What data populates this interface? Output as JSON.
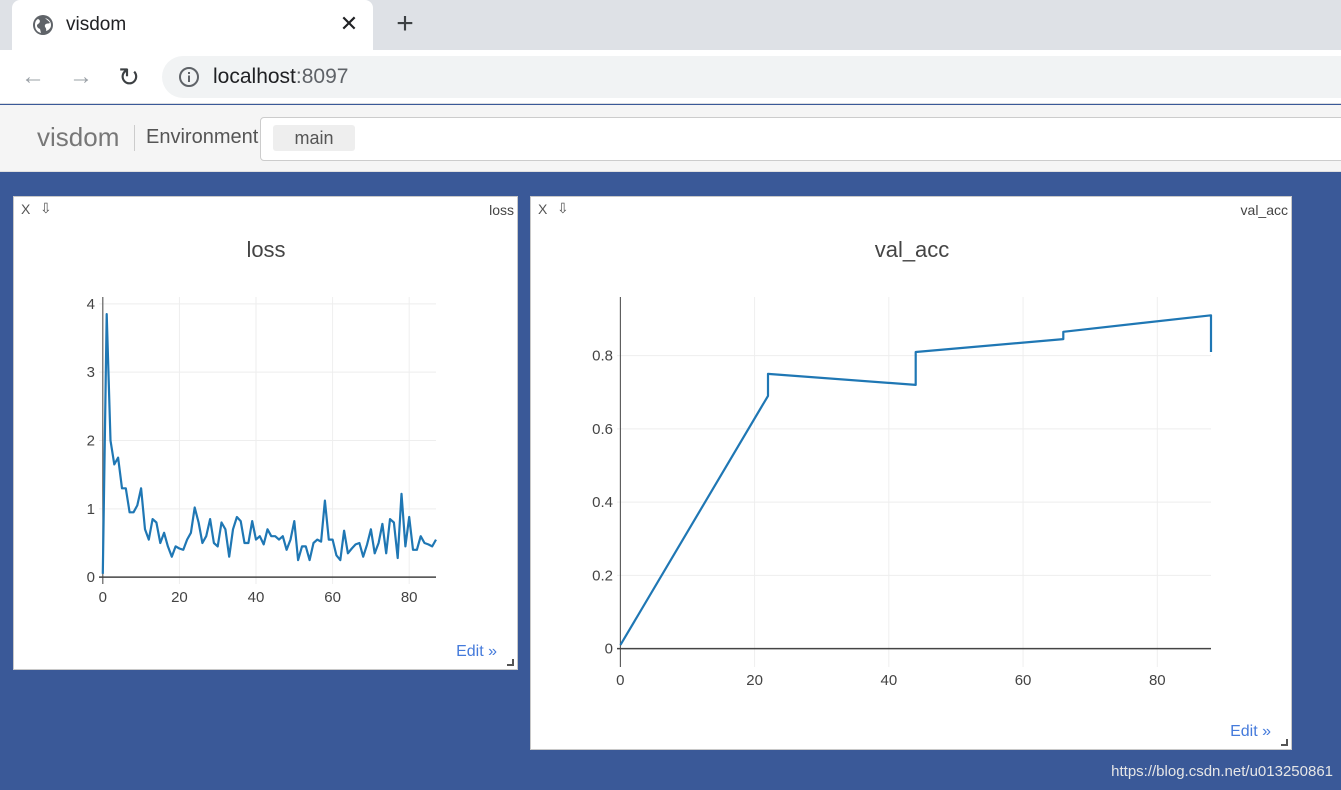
{
  "browser": {
    "tab_title": "visdom",
    "url_host": "localhost",
    "url_port": ":8097"
  },
  "visdom": {
    "brand": "visdom",
    "environment_label": "Environment",
    "env_chip": "main"
  },
  "panes": [
    {
      "window_label": "loss",
      "close_label": "X",
      "download_label": "⇩",
      "edit_label": "Edit »"
    },
    {
      "window_label": "val_acc",
      "close_label": "X",
      "download_label": "⇩",
      "edit_label": "Edit »"
    }
  ],
  "chart_data": [
    {
      "type": "line",
      "title": "loss",
      "xlim": [
        -1,
        87
      ],
      "ylim": [
        -0.1,
        4.1
      ],
      "xticks": [
        0,
        20,
        40,
        60,
        80
      ],
      "yticks": [
        0,
        1,
        2,
        3,
        4
      ],
      "line_color": "#1f77b4",
      "x": [
        0,
        1,
        2,
        3,
        4,
        5,
        6,
        7,
        8,
        9,
        10,
        11,
        12,
        13,
        14,
        15,
        16,
        17,
        18,
        19,
        20,
        21,
        22,
        23,
        24,
        25,
        26,
        27,
        28,
        29,
        30,
        31,
        32,
        33,
        34,
        35,
        36,
        37,
        38,
        39,
        40,
        41,
        42,
        43,
        44,
        45,
        46,
        47,
        48,
        49,
        50,
        51,
        52,
        53,
        54,
        55,
        56,
        57,
        58,
        59,
        60,
        61,
        62,
        63,
        64,
        65,
        66,
        67,
        68,
        69,
        70,
        71,
        72,
        73,
        74,
        75,
        76,
        77,
        78,
        79,
        80,
        81,
        82,
        83,
        84,
        85,
        86,
        87
      ],
      "y": [
        0.05,
        3.85,
        2.0,
        1.65,
        1.75,
        1.3,
        1.3,
        0.95,
        0.95,
        1.05,
        1.3,
        0.7,
        0.55,
        0.85,
        0.8,
        0.5,
        0.65,
        0.45,
        0.3,
        0.45,
        0.42,
        0.4,
        0.55,
        0.65,
        1.02,
        0.8,
        0.5,
        0.6,
        0.85,
        0.5,
        0.45,
        0.8,
        0.7,
        0.3,
        0.7,
        0.88,
        0.82,
        0.5,
        0.5,
        0.82,
        0.55,
        0.6,
        0.48,
        0.7,
        0.6,
        0.6,
        0.55,
        0.6,
        0.4,
        0.55,
        0.82,
        0.25,
        0.45,
        0.45,
        0.25,
        0.5,
        0.55,
        0.52,
        1.12,
        0.55,
        0.55,
        0.32,
        0.25,
        0.68,
        0.35,
        0.42,
        0.48,
        0.5,
        0.3,
        0.48,
        0.7,
        0.35,
        0.5,
        0.78,
        0.35,
        0.85,
        0.8,
        0.28,
        1.22,
        0.45,
        0.88,
        0.4,
        0.4,
        0.6,
        0.5,
        0.48,
        0.45,
        0.55
      ]
    },
    {
      "type": "line",
      "title": "val_acc",
      "xlim": [
        -0.5,
        88
      ],
      "ylim": [
        -0.05,
        0.96
      ],
      "xticks": [
        0,
        20,
        40,
        60,
        80
      ],
      "yticks": [
        0,
        0.2,
        0.4,
        0.6,
        0.8
      ],
      "line_color": "#1f77b4",
      "x": [
        0,
        22,
        22,
        44,
        44,
        66,
        66,
        88,
        88
      ],
      "y": [
        0.01,
        0.69,
        0.75,
        0.72,
        0.81,
        0.845,
        0.865,
        0.91,
        0.81
      ]
    }
  ]
}
